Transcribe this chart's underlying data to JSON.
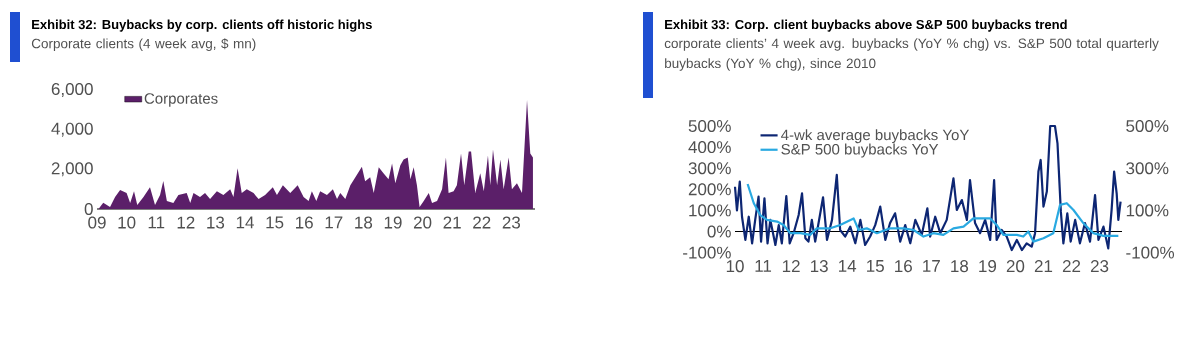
{
  "chart_data": [
    {
      "type": "area",
      "title": "Exhibit 32: Buybacks by corp. clients off historic highs",
      "subtitle": "Corporate clients (4 week avg, $ mn)",
      "xlim": [
        2009,
        2023.8
      ],
      "xticks": [
        {
          "value": 2009,
          "label": "09"
        },
        {
          "value": 2010,
          "label": "10"
        },
        {
          "value": 2011,
          "label": "11"
        },
        {
          "value": 2012,
          "label": "12"
        },
        {
          "value": 2013,
          "label": "13"
        },
        {
          "value": 2014,
          "label": "14"
        },
        {
          "value": 2015,
          "label": "15"
        },
        {
          "value": 2016,
          "label": "16"
        },
        {
          "value": 2017,
          "label": "17"
        },
        {
          "value": 2018,
          "label": "18"
        },
        {
          "value": 2019,
          "label": "19"
        },
        {
          "value": 2020,
          "label": "20"
        },
        {
          "value": 2021,
          "label": "21"
        },
        {
          "value": 2022,
          "label": "22"
        },
        {
          "value": 2023,
          "label": "23"
        }
      ],
      "ylim": [
        0,
        6000
      ],
      "yticks": [
        0,
        {
          "value": 2000,
          "label": "2,000"
        },
        {
          "value": 4000,
          "label": "4,000"
        },
        {
          "value": 6000,
          "label": "6,000"
        }
      ],
      "legend": "top left",
      "series": [
        {
          "name": "Corporates",
          "color": "#5b1f69",
          "x": [
            2009.05,
            2009.21,
            2009.44,
            2009.61,
            2009.78,
            2010.0,
            2010.12,
            2010.25,
            2010.36,
            2010.57,
            2010.79,
            2010.96,
            2011.13,
            2011.24,
            2011.36,
            2011.58,
            2011.75,
            2012.03,
            2012.15,
            2012.26,
            2012.48,
            2012.65,
            2012.82,
            2013.05,
            2013.27,
            2013.5,
            2013.61,
            2013.75,
            2013.89,
            2014.06,
            2014.29,
            2014.46,
            2014.68,
            2014.94,
            2015.08,
            2015.28,
            2015.53,
            2015.78,
            2015.98,
            2016.15,
            2016.26,
            2016.41,
            2016.54,
            2016.77,
            2016.97,
            2017.11,
            2017.22,
            2017.39,
            2017.56,
            2017.73,
            2017.95,
            2018.06,
            2018.23,
            2018.35,
            2018.52,
            2018.68,
            2018.85,
            2018.97,
            2019.08,
            2019.25,
            2019.36,
            2019.5,
            2019.59,
            2019.7,
            2019.81,
            2019.9,
            2020.04,
            2020.21,
            2020.32,
            2020.49,
            2020.66,
            2020.79,
            2020.88,
            2021.05,
            2021.16,
            2021.3,
            2021.41,
            2021.56,
            2021.64,
            2021.78,
            2021.95,
            2022.07,
            2022.21,
            2022.29,
            2022.38,
            2022.52,
            2022.63,
            2022.74,
            2022.91,
            2023.02,
            2023.19,
            2023.36,
            2023.53,
            2023.64,
            2023.73
          ],
          "values": [
            0,
            320,
            100,
            600,
            960,
            800,
            300,
            900,
            200,
            600,
            1090,
            200,
            700,
            1410,
            400,
            300,
            700,
            800,
            300,
            800,
            600,
            800,
            500,
            900,
            700,
            1000,
            600,
            2050,
            800,
            1000,
            800,
            500,
            700,
            1100,
            700,
            1200,
            800,
            1200,
            600,
            400,
            900,
            400,
            900,
            700,
            1000,
            500,
            800,
            500,
            1200,
            1600,
            2130,
            1400,
            1600,
            800,
            2100,
            1800,
            1500,
            2300,
            1300,
            2200,
            2500,
            2600,
            1500,
            2100,
            1200,
            100,
            400,
            800,
            300,
            400,
            1000,
            2600,
            800,
            900,
            1200,
            2800,
            1200,
            2900,
            2900,
            800,
            1800,
            900,
            2700,
            1200,
            3000,
            1200,
            2500,
            1000,
            2600,
            1000,
            1300,
            800,
            5500,
            2800,
            2600
          ]
        }
      ]
    },
    {
      "type": "line",
      "title": "Exhibit 33: Corp. client buybacks above S&P 500 buybacks trend",
      "subtitle": "corporate clients’ 4 week avg. buybacks (YoY % chg) vs. S&P 500 total quarterly buybacks (YoY % chg), since 2010",
      "xlim": [
        2010,
        2023.8
      ],
      "xticks": [
        {
          "value": 2010,
          "label": "10"
        },
        {
          "value": 2011,
          "label": "11"
        },
        {
          "value": 2012,
          "label": "12"
        },
        {
          "value": 2013,
          "label": "13"
        },
        {
          "value": 2014,
          "label": "14"
        },
        {
          "value": 2015,
          "label": "15"
        },
        {
          "value": 2016,
          "label": "16"
        },
        {
          "value": 2017,
          "label": "17"
        },
        {
          "value": 2018,
          "label": "18"
        },
        {
          "value": 2019,
          "label": "19"
        },
        {
          "value": 2020,
          "label": "20"
        },
        {
          "value": 2021,
          "label": "21"
        },
        {
          "value": 2022,
          "label": "22"
        },
        {
          "value": 2023,
          "label": "23"
        }
      ],
      "ylim": [
        -100,
        500
      ],
      "yticks": [
        {
          "value": 500,
          "label": "500%"
        },
        {
          "value": 400,
          "label": "400%"
        },
        {
          "value": 300,
          "label": "300%"
        },
        {
          "value": 200,
          "label": "200%"
        },
        {
          "value": 100,
          "label": "100%"
        },
        {
          "value": 0,
          "label": "0%"
        },
        {
          "value": -100,
          "label": "-100%"
        }
      ],
      "y2lim": [
        -100,
        500
      ],
      "y2ticks": [
        {
          "value": 500,
          "label": "500%"
        },
        {
          "value": 300,
          "label": "300%"
        },
        {
          "value": 100,
          "label": "100%"
        },
        {
          "value": -100,
          "label": "-100%"
        }
      ],
      "legend": "top left",
      "series": [
        {
          "name": "4-wk average buybacks YoY",
          "color": "#0d2673",
          "x": [
            2010.0,
            2010.07,
            2010.17,
            2010.25,
            2010.37,
            2010.49,
            2010.61,
            2010.72,
            2010.84,
            2010.93,
            2011.05,
            2011.16,
            2011.26,
            2011.44,
            2011.56,
            2011.67,
            2011.83,
            2011.95,
            2012.09,
            2012.27,
            2012.39,
            2012.51,
            2012.62,
            2012.74,
            2012.86,
            2012.98,
            2013.14,
            2013.28,
            2013.46,
            2013.63,
            2013.75,
            2013.93,
            2014.11,
            2014.29,
            2014.47,
            2014.64,
            2014.82,
            2015.0,
            2015.18,
            2015.36,
            2015.53,
            2015.71,
            2015.89,
            2016.07,
            2016.25,
            2016.43,
            2016.66,
            2016.86,
            2016.96,
            2017.14,
            2017.32,
            2017.55,
            2017.79,
            2017.91,
            2018.09,
            2018.27,
            2018.38,
            2018.56,
            2018.74,
            2018.92,
            2019.1,
            2019.24,
            2019.33,
            2019.51,
            2019.69,
            2019.87,
            2020.05,
            2020.23,
            2020.4,
            2020.58,
            2020.7,
            2020.82,
            2020.9,
            2021.0,
            2021.12,
            2021.24,
            2021.41,
            2021.5,
            2021.62,
            2021.71,
            2021.85,
            2021.97,
            2022.13,
            2022.3,
            2022.48,
            2022.66,
            2022.84,
            2022.96,
            2023.14,
            2023.31,
            2023.43,
            2023.52,
            2023.61,
            2023.67,
            2023.75
          ],
          "values": [
            212,
            100,
            236,
            70,
            -40,
            70,
            -56,
            55,
            165,
            -48,
            157,
            -56,
            55,
            -64,
            30,
            -56,
            168,
            -56,
            -8,
            78,
            181,
            -32,
            -48,
            55,
            -48,
            40,
            162,
            -40,
            55,
            268,
            7,
            -24,
            23,
            -56,
            55,
            -64,
            -24,
            30,
            118,
            -40,
            40,
            86,
            -48,
            30,
            -56,
            55,
            -16,
            110,
            -24,
            70,
            -8,
            55,
            252,
            102,
            149,
            55,
            244,
            40,
            -8,
            55,
            -40,
            244,
            -40,
            7,
            -24,
            -88,
            -40,
            -88,
            -56,
            -72,
            -8,
            284,
            339,
            118,
            189,
            500,
            500,
            418,
            94,
            -56,
            86,
            -48,
            55,
            -56,
            40,
            -48,
            173,
            -40,
            23,
            -80,
            102,
            284,
            181,
            55,
            141
          ]
        },
        {
          "name": "S&P 500 buybacks YoY",
          "color": "#29a9e1",
          "axis": "y2",
          "x": [
            2010.45,
            2010.67,
            2010.9,
            2011.14,
            2011.5,
            2011.73,
            2011.97,
            2012.33,
            2012.68,
            2012.92,
            2013.4,
            2013.75,
            2014.23,
            2014.41,
            2014.7,
            2015.06,
            2015.53,
            2016.01,
            2016.37,
            2016.72,
            2017.08,
            2017.43,
            2017.79,
            2018.15,
            2018.5,
            2019.1,
            2019.33,
            2019.57,
            2020.05,
            2020.28,
            2020.46,
            2020.64,
            2021.0,
            2021.35,
            2021.59,
            2021.83,
            2022.07,
            2022.42,
            2022.78,
            2023.14,
            2023.67
          ],
          "values": [
            225,
            134,
            78,
            55,
            47,
            31,
            -8,
            -8,
            -16,
            15,
            15,
            31,
            62,
            7,
            15,
            -8,
            15,
            15,
            7,
            -24,
            -8,
            -16,
            15,
            23,
            62,
            62,
            31,
            -16,
            -16,
            -24,
            0,
            -48,
            -32,
            -8,
            126,
            134,
            102,
            40,
            -8,
            -21,
            -21
          ]
        }
      ]
    }
  ]
}
